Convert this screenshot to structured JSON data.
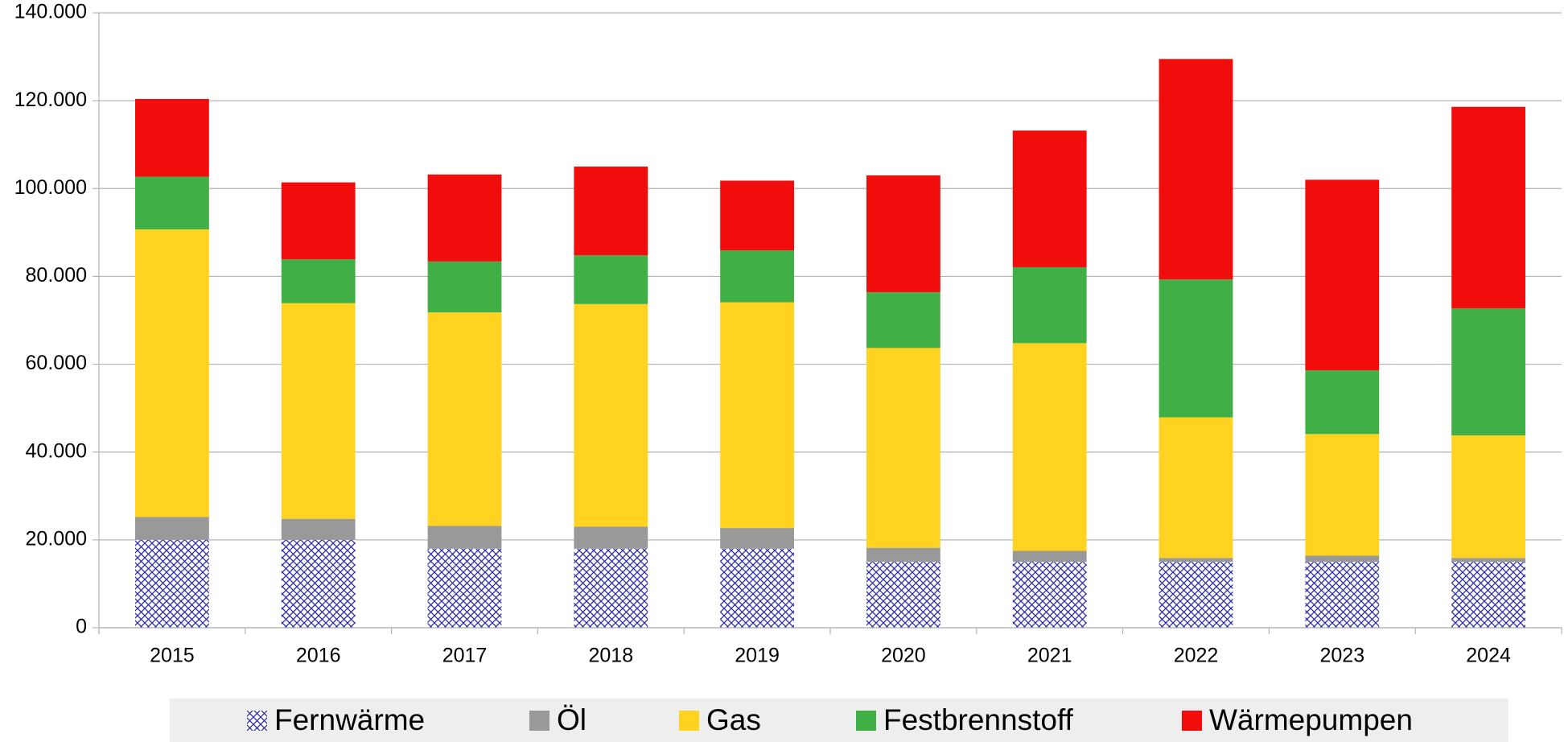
{
  "chart_data": {
    "type": "stacked_bar",
    "categories": [
      "2015",
      "2016",
      "2017",
      "2018",
      "2019",
      "2020",
      "2021",
      "2022",
      "2023",
      "2024"
    ],
    "series": [
      {
        "name": "Fernwärme",
        "color": "#2a2aa8",
        "pattern": "crosshatch",
        "values": [
          20000,
          20000,
          18000,
          18000,
          18000,
          15000,
          15000,
          15000,
          15000,
          15000
        ]
      },
      {
        "name": "Öl",
        "color": "#999999",
        "values": [
          5200,
          4800,
          5200,
          5000,
          4700,
          3200,
          2500,
          900,
          1400,
          900
        ]
      },
      {
        "name": "Gas",
        "color": "#ffd320",
        "values": [
          65500,
          49100,
          48600,
          50700,
          51400,
          45500,
          47300,
          32000,
          27700,
          27900
        ]
      },
      {
        "name": "Festbrennstoff",
        "color": "#3faf46",
        "values": [
          12000,
          10000,
          11600,
          11100,
          11800,
          12700,
          17300,
          31400,
          14500,
          28900
        ]
      },
      {
        "name": "Wärmepumpen",
        "color": "#f10d0c",
        "values": [
          17700,
          17500,
          19800,
          20200,
          15900,
          26600,
          31100,
          50200,
          43400,
          45900
        ]
      }
    ],
    "ylim": [
      0,
      140000
    ],
    "yticks": [
      0,
      {
        "value": 20000,
        "label": "20.000"
      },
      {
        "value": 40000,
        "label": "40.000"
      },
      {
        "value": 60000,
        "label": "60.000"
      },
      {
        "value": 80000,
        "label": "80.000"
      },
      {
        "value": 100000,
        "label": "100.000"
      },
      {
        "value": 120000,
        "label": "120.000"
      },
      {
        "value": 140000,
        "label": "140.000"
      }
    ],
    "grid": true,
    "legend": "bottom"
  }
}
